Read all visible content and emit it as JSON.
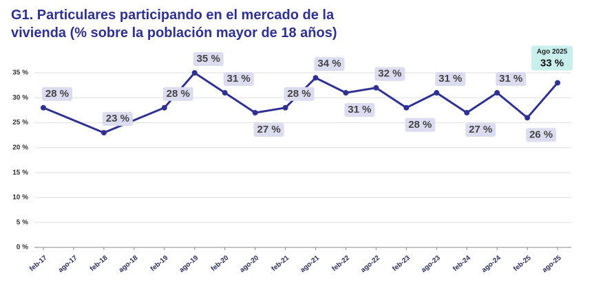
{
  "chart_data": {
    "type": "line",
    "title": "G1. Particulares participando en el mercado de la",
    "subtitle": "vivienda (% sobre la población mayor de 18 años)",
    "x": [
      "2017-02",
      "2018-02",
      "2019-02",
      "2019-08",
      "2020-02",
      "2020-08",
      "2021-02",
      "2021-08",
      "2022-02",
      "2022-08",
      "2023-02",
      "2023-08",
      "2024-02",
      "2024-08",
      "2025-02",
      "2025-08"
    ],
    "series": [
      {
        "color": "#2e3192",
        "values": [
          28,
          23,
          28,
          35,
          31,
          27,
          28,
          34,
          31,
          32,
          28,
          31,
          27,
          31,
          26,
          33
        ],
        "value_labels": [
          "28 %",
          "23 %",
          "28 %",
          "35 %",
          "31 %",
          "27 %",
          "28 %",
          "34 %",
          "31 %",
          "32 %",
          "28 %",
          "31 %",
          "27 %",
          "31 %",
          "26 %",
          "33 %"
        ]
      }
    ],
    "annotation": "Ago 2025",
    "xlim": [
      "2017-02",
      "2025-08"
    ],
    "xticks": [
      {
        "value": "2017-02",
        "label": "feb-17"
      },
      {
        "value": "2017-08",
        "label": "ago-17"
      },
      {
        "value": "2018-02",
        "label": "feb-18"
      },
      {
        "value": "2018-08",
        "label": "ago-18"
      },
      {
        "value": "2019-02",
        "label": "feb-19"
      },
      {
        "value": "2019-08",
        "label": "ago-19"
      },
      {
        "value": "2020-02",
        "label": "feb-20"
      },
      {
        "value": "2020-08",
        "label": "ago-20"
      },
      {
        "value": "2021-02",
        "label": "feb-21"
      },
      {
        "value": "2021-08",
        "label": "ago-21"
      },
      {
        "value": "2022-02",
        "label": "feb-22"
      },
      {
        "value": "2022-08",
        "label": "ago-22"
      },
      {
        "value": "2023-02",
        "label": "feb-23"
      },
      {
        "value": "2023-08",
        "label": "ago-23"
      },
      {
        "value": "2024-02",
        "label": "feb-24"
      },
      {
        "value": "2024-08",
        "label": "ago-24"
      },
      {
        "value": "2025-02",
        "label": "feb-25"
      },
      {
        "value": "2025-08",
        "label": "ago-25"
      }
    ],
    "ylim": [
      0,
      35
    ],
    "yticks": [
      {
        "value": 0,
        "label": "0 %"
      },
      {
        "value": 5,
        "label": "5 %"
      },
      {
        "value": 10,
        "label": "10 %"
      },
      {
        "value": 15,
        "label": "15 %"
      },
      {
        "value": 20,
        "label": "20 %"
      },
      {
        "value": 25,
        "label": "25 %"
      },
      {
        "value": 30,
        "label": "30 %"
      },
      {
        "value": 35,
        "label": "35 %"
      }
    ],
    "grid": true
  }
}
